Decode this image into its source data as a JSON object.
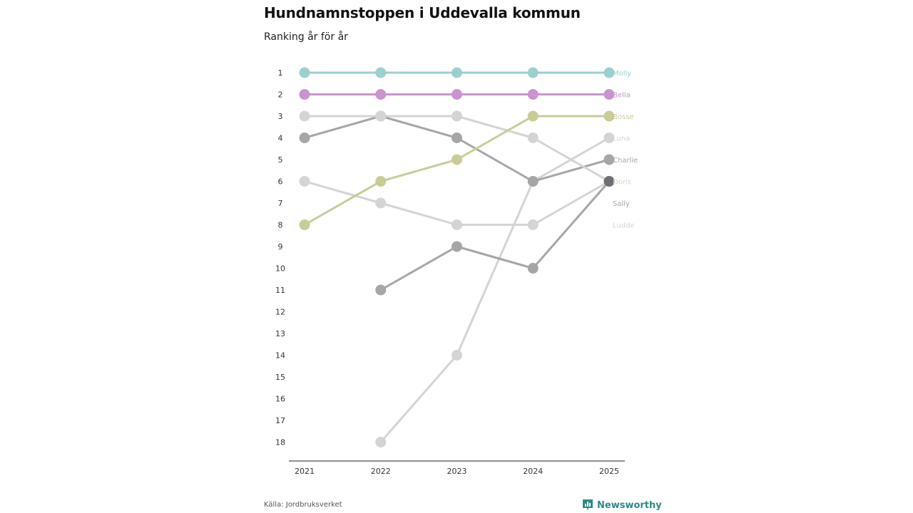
{
  "chart_data": {
    "type": "line",
    "title": "Hundnamnstoppen i Uddevalla kommun",
    "subtitle": "Ranking år för år",
    "x": [
      "2021",
      "2022",
      "2023",
      "2024",
      "2025"
    ],
    "y_ticks": [
      1,
      2,
      3,
      4,
      5,
      6,
      7,
      8,
      9,
      10,
      11,
      12,
      13,
      14,
      15,
      16,
      17,
      18
    ],
    "ylim": [
      1,
      18
    ],
    "y_inverted": true,
    "series": [
      {
        "name": "Molly",
        "color": "#9ecfcf",
        "values": [
          1,
          1,
          1,
          1,
          1
        ]
      },
      {
        "name": "Bella",
        "color": "#c994cf",
        "values": [
          2,
          2,
          2,
          2,
          2
        ]
      },
      {
        "name": "Bosse",
        "color": "#c9cc96",
        "values": [
          8,
          6,
          5,
          3,
          3
        ]
      },
      {
        "name": "Luna",
        "color": "#d4d4d4",
        "values": [
          null,
          18,
          14,
          6,
          4
        ]
      },
      {
        "name": "Charlie",
        "color": "#a6a6a6",
        "values": [
          4,
          3,
          4,
          6,
          5
        ]
      },
      {
        "name": "Doris",
        "color": "#d4d4d4",
        "values": [
          3,
          3,
          3,
          4,
          6
        ]
      },
      {
        "name": "Sally",
        "color": "#a6a6a6",
        "values": [
          null,
          11,
          9,
          10,
          6
        ]
      },
      {
        "name": "Ludde",
        "color": "#d4d4d4",
        "values": [
          6,
          7,
          8,
          8,
          6
        ]
      }
    ],
    "label_positions": {
      "Molly": 1,
      "Bella": 2,
      "Bosse": 3,
      "Luna": 4,
      "Charlie": 5,
      "Doris": 6,
      "Sally": 7,
      "Ludde": 8
    },
    "overlap_marker_color": "#6e6e73"
  },
  "footer": {
    "source": "Källa: Jordbruksverket",
    "brand": "Newsworthy",
    "brand_color": "#2a8c86"
  }
}
